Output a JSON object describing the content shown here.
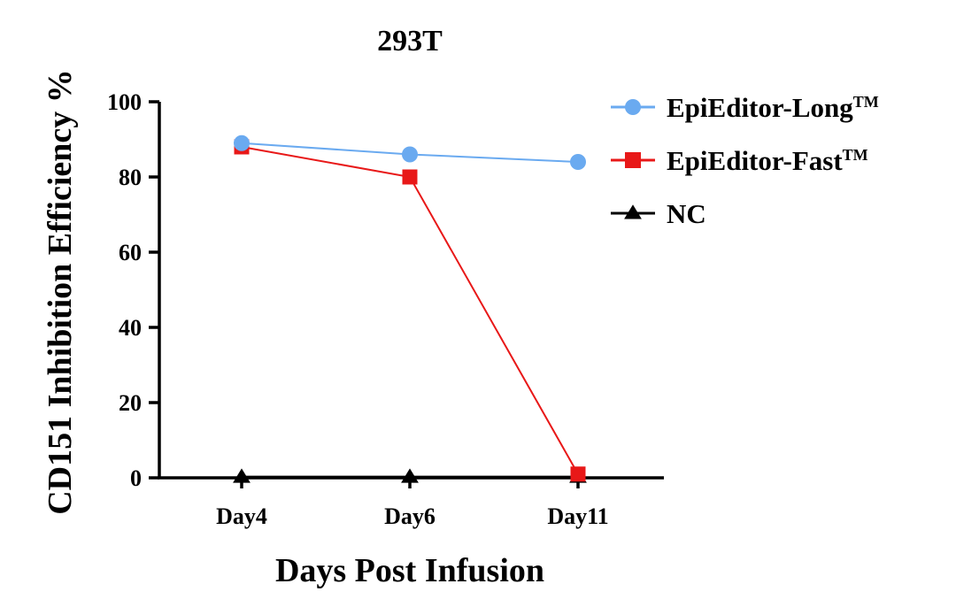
{
  "chart_data": {
    "type": "line",
    "title": "293T",
    "xlabel": "Days Post Infusion",
    "ylabel": "CD151 Inhibition Efficiency %",
    "categories": [
      "Day4",
      "Day6",
      "Day11"
    ],
    "ylim": [
      0,
      100
    ],
    "yticks": [
      0,
      20,
      40,
      60,
      80,
      100
    ],
    "grid": false,
    "legend_position": "top-right",
    "series": [
      {
        "name": "EpiEditor-Long",
        "superscript": "TM",
        "marker": "circle",
        "color": "#6aaaf0",
        "values": [
          89,
          86,
          84
        ]
      },
      {
        "name": "EpiEditor-Fast",
        "superscript": "TM",
        "marker": "square",
        "color": "#e81818",
        "values": [
          88,
          80,
          1
        ]
      },
      {
        "name": "NC",
        "superscript": "",
        "marker": "triangle",
        "color": "#000000",
        "values": [
          0.2,
          0.2,
          0.2
        ]
      }
    ]
  }
}
